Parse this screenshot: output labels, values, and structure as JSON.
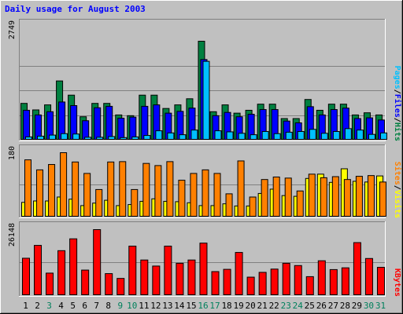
{
  "chart_data": [
    {
      "type": "bar",
      "title": "Daily usage for August 2003",
      "ymax_label": "2749",
      "ylim": [
        0,
        2749
      ],
      "legend": [
        {
          "label": "Pages",
          "color": "#00c0ff"
        },
        {
          "label": "/",
          "color": "#000000"
        },
        {
          "label": "Files",
          "color": "#0000ff"
        },
        {
          "label": "/",
          "color": "#000000"
        },
        {
          "label": "Hits",
          "color": "#008040"
        }
      ],
      "categories": [
        "1",
        "2",
        "3",
        "4",
        "5",
        "6",
        "7",
        "8",
        "9",
        "10",
        "11",
        "12",
        "13",
        "14",
        "15",
        "16",
        "17",
        "18",
        "19",
        "20",
        "21",
        "22",
        "23",
        "24",
        "25",
        "26",
        "27",
        "28",
        "29",
        "30",
        "31"
      ],
      "weekend_days": [
        3,
        9,
        10,
        16,
        17,
        23,
        24,
        30,
        31
      ],
      "series": [
        {
          "name": "Hits",
          "color": "#008040",
          "values": [
            1021,
            840,
            980,
            1645,
            1250,
            650,
            1021,
            1021,
            700,
            680,
            1250,
            1250,
            880,
            980,
            1150,
            2749,
            790,
            980,
            750,
            830,
            1000,
            1000,
            600,
            600,
            1130,
            830,
            1000,
            1000,
            700,
            760,
            700
          ]
        },
        {
          "name": "Files",
          "color": "#0000ff",
          "values": [
            830,
            700,
            790,
            1060,
            960,
            540,
            900,
            940,
            610,
            640,
            940,
            980,
            750,
            800,
            890,
            2240,
            680,
            770,
            650,
            720,
            850,
            850,
            530,
            480,
            930,
            700,
            850,
            890,
            600,
            620,
            560
          ]
        },
        {
          "name": "Pages",
          "color": "#00c0ff",
          "values": [
            90,
            110,
            140,
            180,
            170,
            80,
            80,
            100,
            70,
            90,
            130,
            260,
            200,
            150,
            280,
            2190,
            260,
            230,
            190,
            150,
            240,
            180,
            220,
            240,
            300,
            190,
            240,
            320,
            280,
            160,
            200
          ]
        }
      ]
    },
    {
      "type": "bar",
      "ymax_label": "180",
      "ylim": [
        0,
        180
      ],
      "legend": [
        {
          "label": "Sites",
          "color": "#ff8000"
        },
        {
          "label": "/",
          "color": "#000000"
        },
        {
          "label": "Visits",
          "color": "#ffff00"
        }
      ],
      "series": [
        {
          "name": "Visits",
          "color": "#ffff00",
          "values": [
            41,
            45,
            45,
            56,
            50,
            32,
            39,
            47,
            32,
            35,
            44,
            51,
            44,
            43,
            40,
            32,
            32,
            37,
            31,
            31,
            66,
            78,
            60,
            58,
            108,
            120,
            97,
            135,
            100,
            98,
            115
          ]
        },
        {
          "name": "Sites",
          "color": "#ff8000",
          "values": [
            160,
            132,
            147,
            180,
            154,
            122,
            77,
            154,
            155,
            77,
            150,
            144,
            155,
            103,
            122,
            132,
            122,
            65,
            157,
            56,
            105,
            112,
            109,
            73,
            120,
            110,
            113,
            105,
            114,
            116,
            98
          ]
        }
      ]
    },
    {
      "type": "bar",
      "ymax_label": "26148",
      "ylim": [
        0,
        26148
      ],
      "legend": [
        {
          "label": "KBytes",
          "color": "#ff0000"
        }
      ],
      "series": [
        {
          "name": "KBytes",
          "color": "#ff0000",
          "values": [
            14800,
            19900,
            8900,
            17800,
            22500,
            10100,
            26148,
            8700,
            6800,
            19600,
            14100,
            11700,
            19600,
            12800,
            14100,
            20800,
            9500,
            10400,
            17100,
            7300,
            9200,
            10500,
            12800,
            11900,
            7500,
            13800,
            10300,
            11000,
            21000,
            14700,
            11200
          ]
        }
      ]
    }
  ]
}
